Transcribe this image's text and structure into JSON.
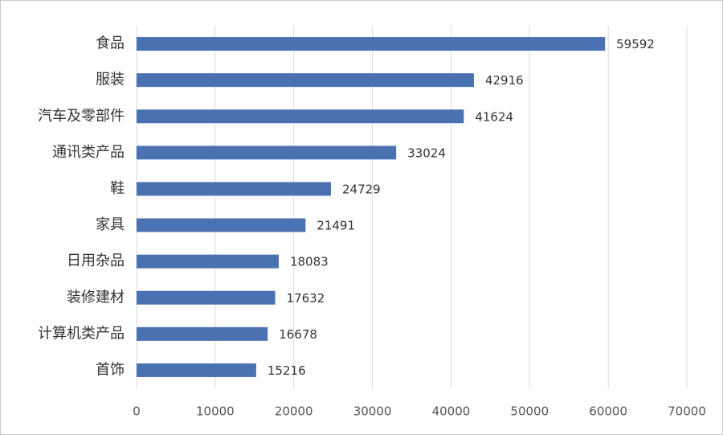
{
  "chart_data": {
    "type": "barh",
    "categories": [
      "食品",
      "服装",
      "汽车及零部件",
      "通讯类产品",
      "鞋",
      "家具",
      "日用杂品",
      "装修建材",
      "计算机类产品",
      "首饰"
    ],
    "values": [
      59592,
      42916,
      41624,
      33024,
      24729,
      21491,
      18083,
      17632,
      16678,
      15216
    ],
    "color": "#4a72b2",
    "xlim": [
      0,
      70000
    ],
    "xticks": [
      0,
      10000,
      20000,
      30000,
      40000,
      50000,
      60000,
      70000
    ],
    "grid": true
  }
}
